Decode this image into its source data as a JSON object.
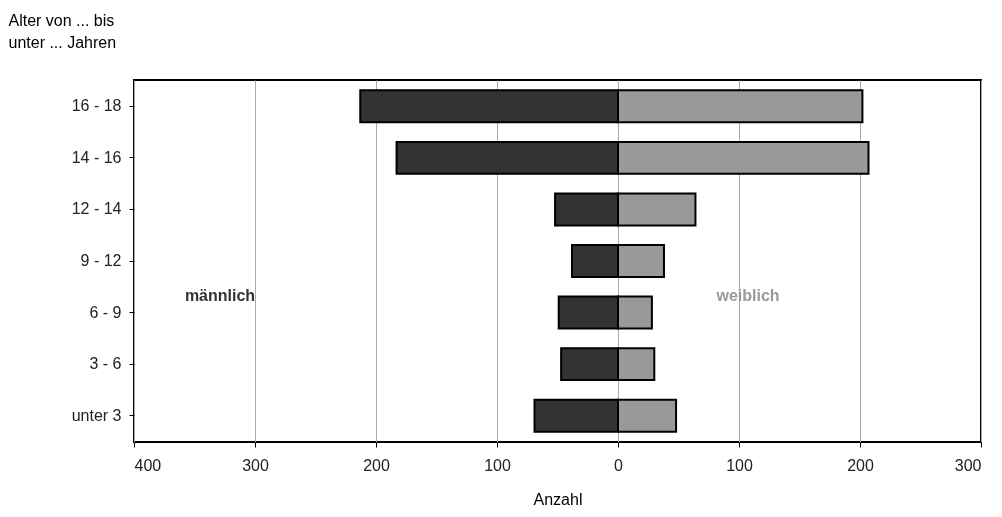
{
  "chart_data": {
    "type": "bar",
    "orientation": "horizontal",
    "ylabel": "Alter von ... bis\nunter ... Jahren",
    "xlabel": "Anzahl",
    "categories": [
      "16 - 18",
      "14 - 16",
      "12 - 14",
      "9 - 12",
      "6 - 9",
      "3 - 6",
      "unter 3"
    ],
    "series": [
      {
        "name": "männlich",
        "color": "#333333",
        "values": [
          -213,
          -183,
          -52,
          -38,
          -49,
          -47,
          -69
        ]
      },
      {
        "name": "weiblich",
        "color": "#999999",
        "values": [
          202,
          207,
          64,
          38,
          28,
          30,
          48
        ]
      }
    ],
    "xlim": [
      -400,
      300
    ],
    "xticks": [
      {
        "value": -400,
        "label": "400"
      },
      {
        "value": -300,
        "label": "300"
      },
      {
        "value": -200,
        "label": "200"
      },
      {
        "value": -100,
        "label": "100"
      },
      0,
      100,
      200,
      300
    ],
    "grid": "x",
    "legend": false,
    "stacked": true
  }
}
